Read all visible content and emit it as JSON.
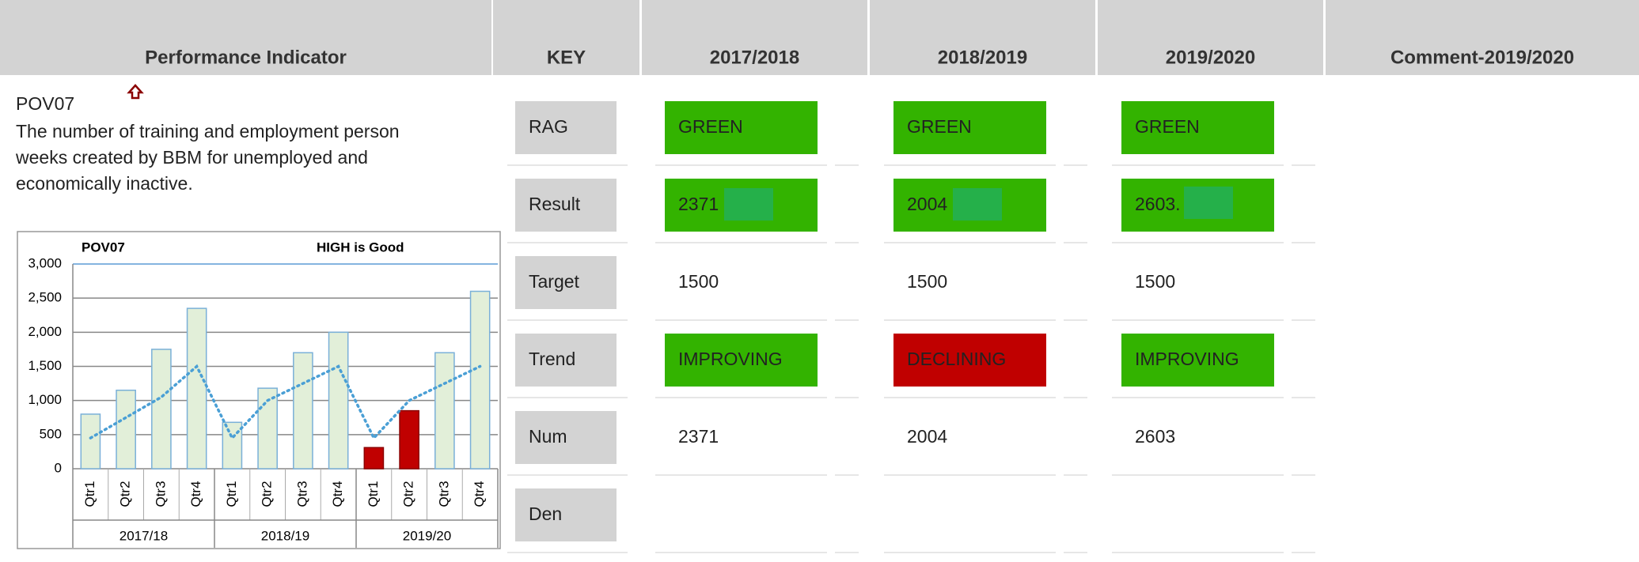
{
  "header": {
    "columns": [
      "Performance Indicator",
      "KEY",
      "2017/2018",
      "2018/2019",
      "2019/2020",
      "Comment-2019/2020"
    ]
  },
  "indicator": {
    "code": "POV07",
    "description_lines": [
      "The number of training and employment person",
      "weeks created by BBM for unemployed and",
      "economically inactive."
    ]
  },
  "table": {
    "rows": [
      {
        "key": "RAG",
        "values": [
          "GREEN",
          "GREEN",
          "GREEN"
        ],
        "colors": [
          "#33b300",
          "#33b300",
          "#33b300"
        ]
      },
      {
        "key": "Result",
        "values": [
          "2371",
          "2004",
          "2603."
        ],
        "colors": [
          "#33b300",
          "#33b300",
          "#33b300"
        ]
      },
      {
        "key": "Target",
        "values": [
          "1500",
          "1500",
          "1500"
        ]
      },
      {
        "key": "Trend",
        "values": [
          "IMPROVING",
          "DECLINING",
          "IMPROVING"
        ],
        "colors": [
          "#33b300",
          "#c00000",
          "#33b300"
        ]
      },
      {
        "key": "Num",
        "values": [
          "2371",
          "2004",
          "2603"
        ]
      },
      {
        "key": "Den"
      }
    ]
  },
  "chart": {
    "type": "bar",
    "title": "POV07",
    "annotation": "HIGH is Good",
    "categories": [
      "Qtr1",
      "Qtr2",
      "Qtr3",
      "Qtr4",
      "Qtr1",
      "Qtr2",
      "Qtr3",
      "Qtr4",
      "Qtr1",
      "Qtr2",
      "Qtr3",
      "Qtr4"
    ],
    "groups": [
      "2017/18",
      "2018/19",
      "2019/20"
    ],
    "values": [
      800,
      1150,
      1750,
      2350,
      680,
      1180,
      1700,
      2000,
      310,
      850,
      1700,
      2600
    ],
    "colors": [
      "#e2efd9",
      "#e2efd9",
      "#e2efd9",
      "#e2efd9",
      "#e2efd9",
      "#e2efd9",
      "#e2efd9",
      "#e2efd9",
      "#c00000",
      "#c00000",
      "#e2efd9",
      "#e2efd9"
    ],
    "target": {
      "values": [
        450,
        750,
        1050,
        1500,
        450,
        1000,
        1250,
        1500,
        450,
        1000,
        1250,
        1500
      ],
      "color": "#4a9fd5"
    },
    "ylim": [
      0,
      3000
    ],
    "yticks": [
      0,
      500,
      {
        "value": 1000,
        "label": "1,000"
      },
      {
        "value": 1500,
        "label": "1,500"
      },
      {
        "value": 2000,
        "label": "2,000"
      },
      {
        "value": 2500,
        "label": "2,500"
      },
      {
        "value": 3000,
        "label": "3,000"
      }
    ]
  }
}
